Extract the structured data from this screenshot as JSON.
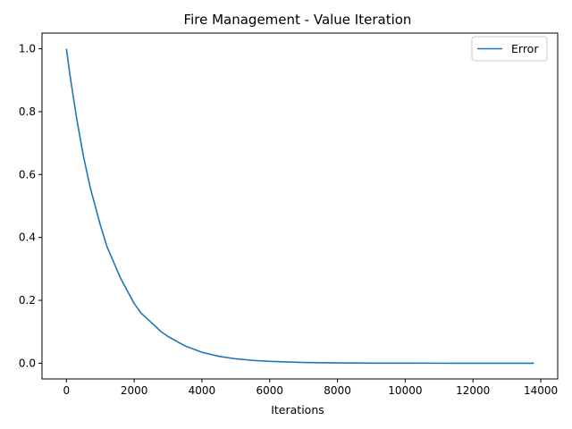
{
  "chart_data": {
    "type": "line",
    "title": "Fire Management - Value Iteration",
    "xlabel": "Iterations",
    "ylabel": "",
    "xlim": [
      -720,
      14500
    ],
    "ylim": [
      -0.05,
      1.05
    ],
    "x_ticks": [
      0,
      2000,
      4000,
      6000,
      8000,
      10000,
      12000,
      14000
    ],
    "x_tick_labels": [
      "0",
      "2000",
      "4000",
      "6000",
      "8000",
      "10000",
      "12000",
      "14000"
    ],
    "y_ticks": [
      0.0,
      0.2,
      0.4,
      0.6,
      0.8,
      1.0
    ],
    "y_tick_labels": [
      "0.0",
      "0.2",
      "0.4",
      "0.6",
      "0.8",
      "1.0"
    ],
    "grid": false,
    "legend": {
      "position": "top-right",
      "entries": [
        "Error"
      ]
    },
    "series": [
      {
        "name": "Error",
        "color": "#1f77b4",
        "x": [
          0,
          100,
          200,
          300,
          400,
          500,
          600,
          700,
          800,
          900,
          1000,
          1200,
          1400,
          1600,
          1800,
          2000,
          2200,
          2400,
          2600,
          2800,
          3000,
          3500,
          4000,
          4500,
          5000,
          5500,
          6000,
          7000,
          8000,
          9000,
          10000,
          11000,
          12000,
          13000,
          13800
        ],
        "y": [
          1.0,
          0.92,
          0.85,
          0.78,
          0.72,
          0.66,
          0.61,
          0.56,
          0.52,
          0.48,
          0.44,
          0.37,
          0.32,
          0.27,
          0.23,
          0.19,
          0.16,
          0.14,
          0.12,
          0.1,
          0.085,
          0.055,
          0.035,
          0.022,
          0.014,
          0.009,
          0.006,
          0.0025,
          0.001,
          0.0004,
          0.0002,
          0.0001,
          0.0,
          0.0,
          0.0
        ]
      }
    ]
  }
}
